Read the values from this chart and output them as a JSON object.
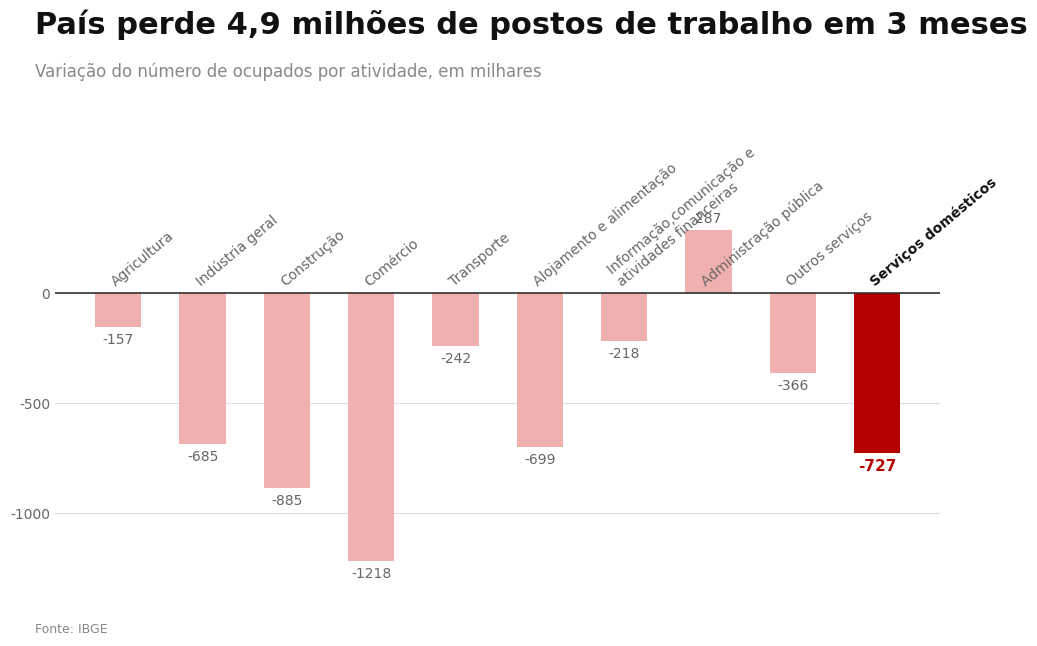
{
  "title": "País perde 4,9 milhões de postos de trabalho em 3 meses",
  "subtitle": "Variação do número de ocupados por atividade, em milhares",
  "fonte": "Fonte: IBGE",
  "categories": [
    "Agricultura",
    "Indústria geral",
    "Construção",
    "Comércio",
    "Transporte",
    "Alojamento e alimentação",
    "Informação,comunicação e\natividades financeiras",
    "Administração pública",
    "Outros serviços",
    "Serviços domésticos"
  ],
  "values": [
    -157,
    -685,
    -885,
    -1218,
    -242,
    -699,
    -218,
    287,
    -366,
    -727
  ],
  "bar_colors": [
    "#f0b0b0",
    "#f0b0b0",
    "#f0b0b0",
    "#f0b0b0",
    "#f0b0b0",
    "#f0b0b0",
    "#f0b0b0",
    "#f0b0b0",
    "#f0b0b0",
    "#b50000"
  ],
  "highlight_index": 9,
  "ylim": [
    -1380,
    900
  ],
  "yticks": [
    -1000,
    -500,
    0
  ],
  "title_fontsize": 22,
  "subtitle_fontsize": 12,
  "label_fontsize": 10,
  "tick_label_fontsize": 10,
  "background_color": "#ffffff",
  "grid_color": "#dddddd",
  "text_color_normal": "#666666",
  "text_color_highlight": "#b50000",
  "title_color": "#111111",
  "subtitle_color": "#888888",
  "fonte_color": "#888888"
}
